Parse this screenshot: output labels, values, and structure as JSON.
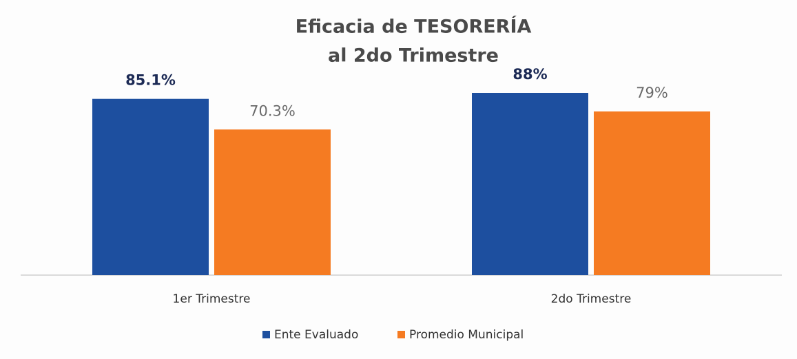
{
  "chart_data": {
    "type": "bar",
    "title": [
      "Eficacia  de TESORERÍA",
      "al 2do Trimestre"
    ],
    "categories": [
      "1er Trimestre",
      "2do Trimestre"
    ],
    "series": [
      {
        "name": "Ente Evaluado",
        "color": "#1d4f9f",
        "values": [
          85.1,
          88
        ],
        "value_labels": [
          "85.1%",
          "88%"
        ]
      },
      {
        "name": "Promedio Municipal",
        "color": "#f57b22",
        "values": [
          70.3,
          79
        ],
        "value_labels": [
          "70.3%",
          "79%"
        ]
      }
    ],
    "legend": "bottom"
  }
}
